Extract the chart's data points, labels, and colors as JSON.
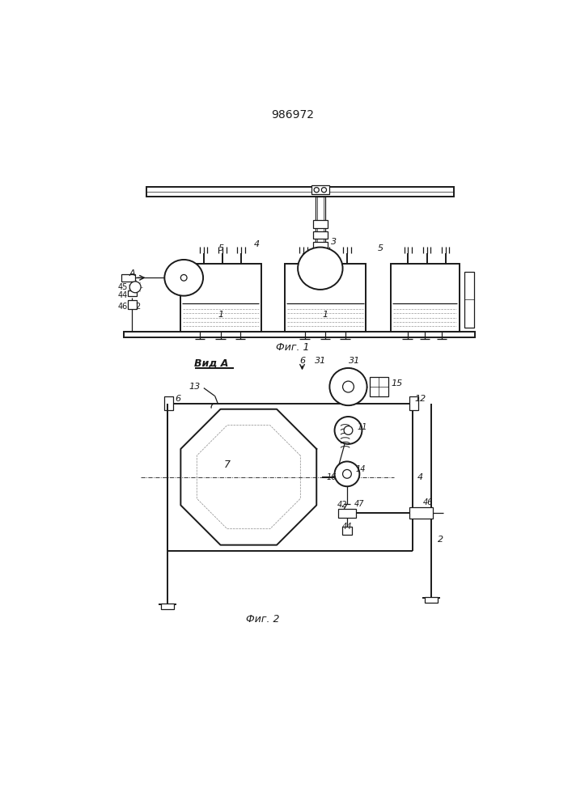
{
  "title": "986972",
  "fig1_caption": "Фиг. 1",
  "fig2_caption": "Фиг. 2",
  "fig2_view_label": "Вид A",
  "bg_color": "#ffffff",
  "line_color": "#1a1a1a"
}
